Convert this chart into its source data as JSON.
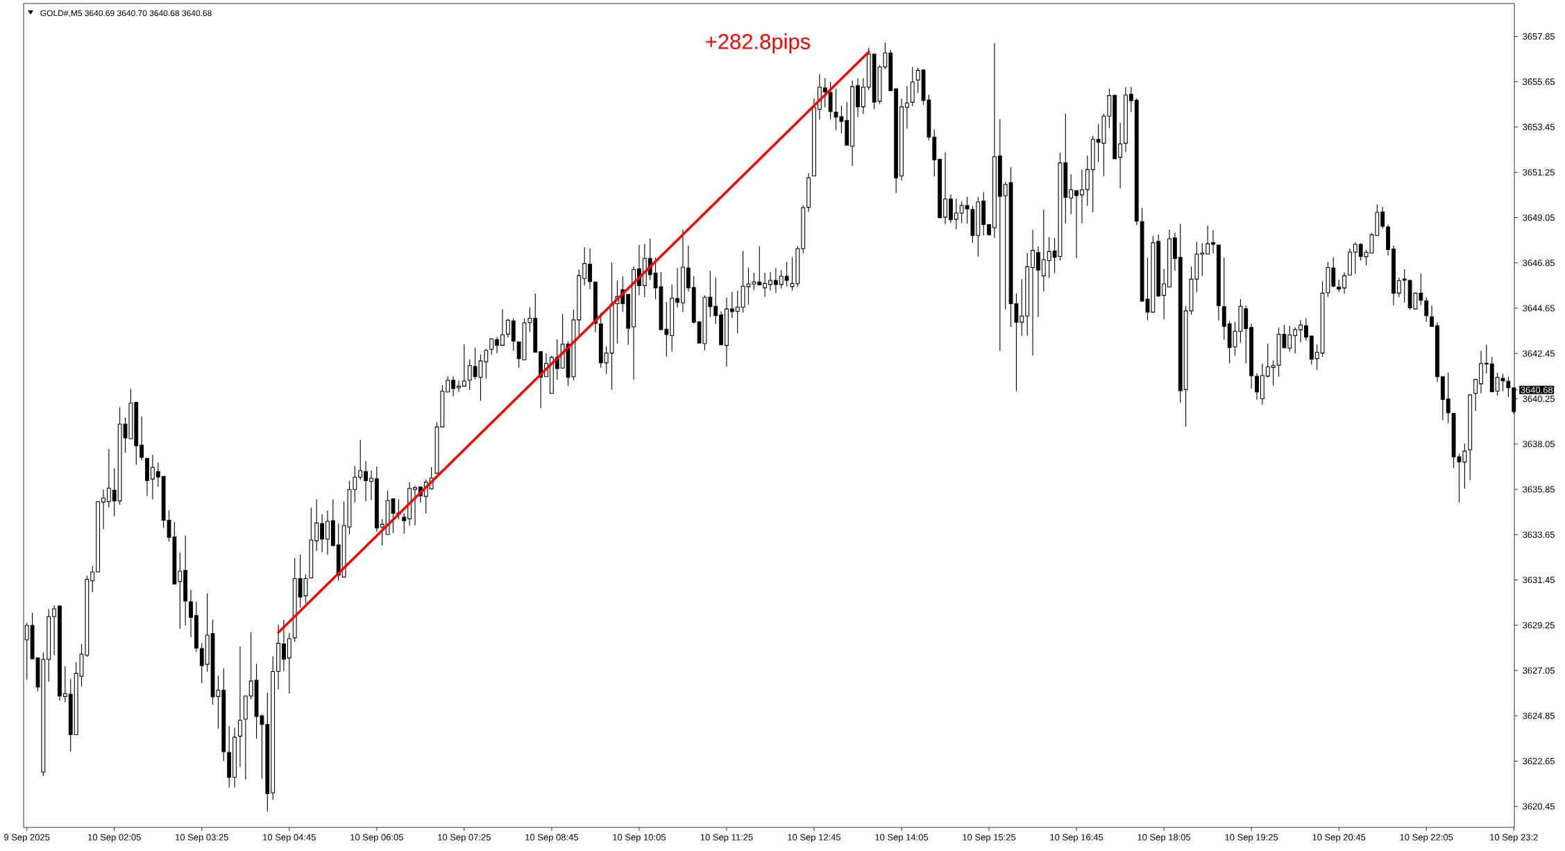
{
  "chart_data": {
    "type": "candlestick",
    "title": "GOLD#,M5  3640.69 3640.70 3640.68 3640.68",
    "color": "#000000",
    "categories": [
      "9 Sep 2025",
      null,
      null,
      null,
      null,
      null,
      null,
      null,
      null,
      null,
      null,
      null,
      null,
      null,
      null,
      null,
      "10 Sep 02:05",
      null,
      null,
      null,
      null,
      null,
      null,
      null,
      null,
      null,
      null,
      null,
      null,
      null,
      null,
      null,
      "10 Sep 03:25",
      null,
      null,
      null,
      null,
      null,
      null,
      null,
      null,
      null,
      null,
      null,
      null,
      null,
      null,
      null,
      "10 Sep 04:45",
      null,
      null,
      null,
      null,
      null,
      null,
      null,
      null,
      null,
      null,
      null,
      null,
      null,
      null,
      null,
      "10 Sep 06:05",
      null,
      null,
      null,
      null,
      null,
      null,
      null,
      null,
      null,
      null,
      null,
      null,
      null,
      null,
      null,
      "10 Sep 07:25",
      null,
      null,
      null,
      null,
      null,
      null,
      null,
      null,
      null,
      null,
      null,
      null,
      null,
      null,
      null,
      "10 Sep 08:45",
      null,
      null,
      null,
      null,
      null,
      null,
      null,
      null,
      null,
      null,
      null,
      null,
      null,
      null,
      null,
      "10 Sep 10:05",
      null,
      null,
      null,
      null,
      null,
      null,
      null,
      null,
      null,
      null,
      null,
      null,
      null,
      null,
      null,
      "10 Sep 11:25",
      null,
      null,
      null,
      null,
      null,
      null,
      null,
      null,
      null,
      null,
      null,
      null,
      null,
      null,
      null,
      "10 Sep 12:45",
      null,
      null,
      null,
      null,
      null,
      null,
      null,
      null,
      null,
      null,
      null,
      null,
      null,
      null,
      null,
      "10 Sep 14:05",
      null,
      null,
      null,
      null,
      null,
      null,
      null,
      null,
      null,
      null,
      null,
      null,
      null,
      null,
      null,
      "10 Sep 15:25",
      null,
      null,
      null,
      null,
      null,
      null,
      null,
      null,
      null,
      null,
      null,
      null,
      null,
      null,
      null,
      "10 Sep 16:45",
      null,
      null,
      null,
      null,
      null,
      null,
      null,
      null,
      null,
      null,
      null,
      null,
      null,
      null,
      null,
      "10 Sep 18:05",
      null,
      null,
      null,
      null,
      null,
      null,
      null,
      null,
      null,
      null,
      null,
      null,
      null,
      null,
      null,
      "10 Sep 19:25",
      null,
      null,
      null,
      null,
      null,
      null,
      null,
      null,
      null,
      null,
      null,
      null,
      null,
      null,
      null,
      "10 Sep 20:45",
      null,
      null,
      null,
      null,
      null,
      null,
      null,
      null,
      null,
      null,
      null,
      null,
      null,
      null,
      null,
      "10 Sep 22:05",
      null,
      null,
      null,
      null,
      null,
      null,
      null,
      null,
      null,
      null,
      null,
      null,
      null,
      null,
      null,
      "10 Sep 23:2"
    ],
    "ohlc": [
      [
        3628.54,
        3629.37,
        3626.6,
        3629.24
      ],
      [
        3629.24,
        3629.85,
        3627.62,
        3627.62
      ],
      [
        3627.66,
        3627.68,
        3626.05,
        3626.25
      ],
      [
        3622.12,
        3627.92,
        3621.93,
        3627.59
      ],
      [
        3627.59,
        3630.03,
        3626.5,
        3629.67
      ],
      [
        3629.67,
        3630.22,
        3627.79,
        3630.05
      ],
      [
        3630.18,
        3630.22,
        3625.59,
        3625.81
      ],
      [
        3625.79,
        3627.26,
        3625.51,
        3625.92
      ],
      [
        3625.9,
        3626.64,
        3623.11,
        3623.93
      ],
      [
        3623.93,
        3627.46,
        3623.93,
        3626.91
      ],
      [
        3626.77,
        3628.34,
        3626.27,
        3627.85
      ],
      [
        3627.79,
        3631.65,
        3627.72,
        3631.48
      ],
      [
        3631.41,
        3632.13,
        3630.86,
        3631.84
      ],
      [
        3631.84,
        3635.25,
        3631.84,
        3635.25
      ],
      [
        3635.23,
        3635.85,
        3633.91,
        3635.43
      ],
      [
        3635.25,
        3637.81,
        3634.97,
        3635.91
      ],
      [
        3635.81,
        3636.86,
        3634.54,
        3635.29
      ],
      [
        3635.29,
        3639.84,
        3635.1,
        3639.02
      ],
      [
        3639.02,
        3639.34,
        3637.63,
        3638.35
      ],
      [
        3638.31,
        3640.72,
        3638.31,
        3640.04
      ],
      [
        3640.08,
        3640.08,
        3637.05,
        3637.97
      ],
      [
        3638.0,
        3639.4,
        3637.27,
        3637.4
      ],
      [
        3637.36,
        3637.36,
        3635.53,
        3636.28
      ],
      [
        3636.35,
        3637.53,
        3635.36,
        3636.92
      ],
      [
        3636.72,
        3637.16,
        3635.98,
        3636.45
      ],
      [
        3636.48,
        3636.48,
        3633.98,
        3634.35
      ],
      [
        3634.35,
        3634.83,
        3633.32,
        3633.52
      ],
      [
        3633.54,
        3634.27,
        3631.25,
        3631.25
      ],
      [
        3631.37,
        3632.77,
        3629.08,
        3631.87
      ],
      [
        3631.91,
        3633.61,
        3629.24,
        3630.42
      ],
      [
        3630.39,
        3630.97,
        3628.67,
        3629.63
      ],
      [
        3629.72,
        3630.39,
        3627.96,
        3628.14
      ],
      [
        3628.12,
        3628.38,
        3626.43,
        3627.29
      ],
      [
        3627.35,
        3630.79,
        3627.0,
        3628.77
      ],
      [
        3628.84,
        3629.53,
        3625.39,
        3625.77
      ],
      [
        3625.79,
        3626.8,
        3624.23,
        3626.1
      ],
      [
        3626.1,
        3627.16,
        3622.65,
        3623.11
      ],
      [
        3623.07,
        3624.36,
        3621.37,
        3621.86
      ],
      [
        3621.86,
        3624.27,
        3621.37,
        3623.81
      ],
      [
        3623.86,
        3628.22,
        3622.36,
        3624.63
      ],
      [
        3624.69,
        3625.81,
        3621.76,
        3625.81
      ],
      [
        3625.81,
        3628.91,
        3625.65,
        3626.54
      ],
      [
        3626.58,
        3627.37,
        3623.74,
        3624.82
      ],
      [
        3624.85,
        3624.92,
        3621.8,
        3624.43
      ],
      [
        3624.43,
        3625.98,
        3620.21,
        3621.07
      ],
      [
        3621.11,
        3627.75,
        3620.77,
        3627.0
      ],
      [
        3627.01,
        3629.28,
        3626.14,
        3628.37
      ],
      [
        3628.35,
        3629.51,
        3627.01,
        3627.6
      ],
      [
        3627.66,
        3628.88,
        3625.94,
        3628.6
      ],
      [
        3628.64,
        3632.5,
        3628.44,
        3631.52
      ],
      [
        3631.52,
        3632.68,
        3630.11,
        3630.62
      ],
      [
        3630.68,
        3631.72,
        3630.31,
        3631.52
      ],
      [
        3631.55,
        3634.96,
        3631.52,
        3633.39
      ],
      [
        3633.35,
        3635.37,
        3632.86,
        3634.22
      ],
      [
        3634.19,
        3634.64,
        3632.79,
        3633.43
      ],
      [
        3633.43,
        3634.82,
        3632.66,
        3634.3
      ],
      [
        3634.33,
        3635.36,
        3633.08,
        3633.12
      ],
      [
        3633.15,
        3634.19,
        3631.41,
        3631.68
      ],
      [
        3631.59,
        3635.26,
        3631.59,
        3634.09
      ],
      [
        3634.02,
        3636.27,
        3633.66,
        3635.84
      ],
      [
        3635.84,
        3636.99,
        3635.2,
        3636.44
      ],
      [
        3636.44,
        3638.25,
        3636.31,
        3636.76
      ],
      [
        3636.72,
        3637.23,
        3635.26,
        3636.27
      ],
      [
        3636.24,
        3636.76,
        3635.33,
        3636.39
      ],
      [
        3636.36,
        3636.96,
        3633.79,
        3633.97
      ],
      [
        3634.02,
        3634.4,
        3633.12,
        3634.15
      ],
      [
        3633.66,
        3635.8,
        3633.66,
        3635.31
      ],
      [
        3635.39,
        3635.39,
        3633.73,
        3634.69
      ],
      [
        3634.69,
        3635.36,
        3634.4,
        3634.64
      ],
      [
        3634.5,
        3634.69,
        3633.7,
        3634.33
      ],
      [
        3634.42,
        3636.2,
        3634.09,
        3635.89
      ],
      [
        3635.84,
        3636.03,
        3634.1,
        3635.93
      ],
      [
        3635.97,
        3636.03,
        3635.2,
        3635.53
      ],
      [
        3635.51,
        3636.34,
        3634.69,
        3636.2
      ],
      [
        3635.87,
        3636.94,
        3635.87,
        3636.4
      ],
      [
        3636.63,
        3639.12,
        3636.63,
        3638.88
      ],
      [
        3638.88,
        3640.91,
        3638.88,
        3640.62
      ],
      [
        3640.58,
        3641.33,
        3640.58,
        3641.15
      ],
      [
        3641.15,
        3641.33,
        3640.38,
        3640.75
      ],
      [
        3640.78,
        3641.13,
        3640.58,
        3640.86
      ],
      [
        3640.86,
        3642.89,
        3640.86,
        3641.11
      ],
      [
        3641.15,
        3642.16,
        3640.68,
        3641.86
      ],
      [
        3641.82,
        3642.74,
        3641.19,
        3641.33
      ],
      [
        3641.29,
        3642.4,
        3640.15,
        3642.09
      ],
      [
        3642.05,
        3642.66,
        3641.22,
        3642.6
      ],
      [
        3642.65,
        3643.2,
        3642.4,
        3643.16
      ],
      [
        3643.12,
        3643.25,
        3642.46,
        3642.85
      ],
      [
        3642.85,
        3644.6,
        3642.82,
        3643.36
      ],
      [
        3643.39,
        3644.14,
        3643.23,
        3644.07
      ],
      [
        3644.03,
        3644.16,
        3642.58,
        3643.05
      ],
      [
        3643.01,
        3643.01,
        3641.75,
        3642.2
      ],
      [
        3642.14,
        3644.16,
        3642.14,
        3643.94
      ],
      [
        3643.95,
        3644.68,
        3643.5,
        3644.16
      ],
      [
        3644.16,
        3645.36,
        3642.51,
        3642.51
      ],
      [
        3642.54,
        3642.54,
        3639.8,
        3641.3
      ],
      [
        3641.32,
        3642.45,
        3641.32,
        3641.97
      ],
      [
        3640.51,
        3642.34,
        3640.51,
        3642.26
      ],
      [
        3642.26,
        3643.13,
        3641.18,
        3641.72
      ],
      [
        3641.74,
        3644.37,
        3641.74,
        3642.9
      ],
      [
        3642.9,
        3643.05,
        3640.87,
        3641.29
      ],
      [
        3641.32,
        3644.59,
        3641.15,
        3644.08
      ],
      [
        3644.08,
        3646.53,
        3643.3,
        3646.23
      ],
      [
        3646.09,
        3647.61,
        3645.75,
        3646.82
      ],
      [
        3646.79,
        3647.55,
        3645.57,
        3645.94
      ],
      [
        3645.92,
        3645.92,
        3643.49,
        3643.91
      ],
      [
        3643.89,
        3644.42,
        3641.75,
        3642.0
      ],
      [
        3642.0,
        3642.79,
        3641.46,
        3642.47
      ],
      [
        3642.47,
        3646.87,
        3640.7,
        3644.85
      ],
      [
        3644.87,
        3646.0,
        3642.93,
        3645.21
      ],
      [
        3645.55,
        3646.2,
        3644.48,
        3644.87
      ],
      [
        3645.32,
        3645.32,
        3642.87,
        3643.67
      ],
      [
        3643.75,
        3646.68,
        3641.18,
        3646.53
      ],
      [
        3646.56,
        3647.73,
        3645.27,
        3645.75
      ],
      [
        3645.75,
        3647.78,
        3645.19,
        3647.07
      ],
      [
        3647.07,
        3648.03,
        3646.02,
        3646.28
      ],
      [
        3646.36,
        3647.1,
        3645.08,
        3645.64
      ],
      [
        3645.69,
        3646.4,
        3643.61,
        3643.61
      ],
      [
        3643.63,
        3644.95,
        3642.3,
        3643.37
      ],
      [
        3643.32,
        3645.8,
        3642.54,
        3645.13
      ],
      [
        3645.12,
        3646.6,
        3644.68,
        3644.93
      ],
      [
        3644.91,
        3648.46,
        3644.46,
        3646.64
      ],
      [
        3646.6,
        3647.69,
        3645.47,
        3645.64
      ],
      [
        3645.66,
        3646.2,
        3643.91,
        3643.97
      ],
      [
        3643.99,
        3643.99,
        3642.93,
        3642.96
      ],
      [
        3642.93,
        3645.27,
        3642.6,
        3645.18
      ],
      [
        3645.19,
        3646.45,
        3644.22,
        3644.73
      ],
      [
        3644.74,
        3646.15,
        3643.88,
        3644.29
      ],
      [
        3644.33,
        3644.5,
        3642.87,
        3642.87
      ],
      [
        3642.84,
        3645.16,
        3641.81,
        3644.61
      ],
      [
        3644.61,
        3645.44,
        3644.18,
        3644.48
      ],
      [
        3644.5,
        3645.49,
        3643.43,
        3644.7
      ],
      [
        3644.7,
        3647.43,
        3644.44,
        3645.72
      ],
      [
        3645.69,
        3646.62,
        3644.82,
        3645.83
      ],
      [
        3645.82,
        3646.37,
        3645.53,
        3645.92
      ],
      [
        3645.92,
        3647.66,
        3645.78,
        3645.78
      ],
      [
        3645.64,
        3646.37,
        3645.2,
        3645.85
      ],
      [
        3645.8,
        3646.4,
        3645.5,
        3646.0
      ],
      [
        3646.0,
        3646.6,
        3645.4,
        3645.8
      ],
      [
        3645.8,
        3646.5,
        3645.6,
        3646.2
      ],
      [
        3646.2,
        3646.9,
        3645.7,
        3646.0
      ],
      [
        3645.7,
        3647.13,
        3645.5,
        3645.85
      ],
      [
        3645.84,
        3647.66,
        3645.7,
        3647.54
      ],
      [
        3647.54,
        3649.66,
        3647.3,
        3649.53
      ],
      [
        3649.55,
        3651.21,
        3649.33,
        3650.99
      ],
      [
        3651.07,
        3654.85,
        3651.07,
        3654.4
      ],
      [
        3654.31,
        3656.03,
        3653.8,
        3655.39
      ],
      [
        3655.35,
        3655.83,
        3654.4,
        3655.15
      ],
      [
        3655.13,
        3655.64,
        3653.83,
        3654.2
      ],
      [
        3654.17,
        3655.3,
        3653.29,
        3653.93
      ],
      [
        3653.95,
        3654.49,
        3653.14,
        3653.72
      ],
      [
        3653.77,
        3654.66,
        3652.57,
        3652.57
      ],
      [
        3652.52,
        3655.72,
        3651.56,
        3655.41
      ],
      [
        3655.46,
        3655.81,
        3653.93,
        3654.43
      ],
      [
        3654.43,
        3655.83,
        3654.09,
        3655.39
      ],
      [
        3655.39,
        3657.3,
        3655.24,
        3656.99
      ],
      [
        3656.99,
        3656.99,
        3654.32,
        3654.66
      ],
      [
        3654.7,
        3656.45,
        3654.57,
        3656.37
      ],
      [
        3656.37,
        3657.55,
        3656.26,
        3657.05
      ],
      [
        3657.05,
        3657.19,
        3655.21,
        3655.21
      ],
      [
        3655.3,
        3655.33,
        3650.25,
        3650.98
      ],
      [
        3651.07,
        3654.82,
        3650.85,
        3654.43
      ],
      [
        3654.4,
        3655.44,
        3653.38,
        3654.62
      ],
      [
        3654.65,
        3656.37,
        3654.46,
        3655.64
      ],
      [
        3655.73,
        3656.32,
        3655.1,
        3656.2
      ],
      [
        3656.22,
        3656.26,
        3654.53,
        3654.74
      ],
      [
        3654.76,
        3655.02,
        3652.8,
        3652.96
      ],
      [
        3652.96,
        3653.33,
        3651.05,
        3651.86
      ],
      [
        3651.88,
        3651.92,
        3649.04,
        3649.04
      ],
      [
        3649.07,
        3652.22,
        3648.74,
        3649.95
      ],
      [
        3649.95,
        3650.17,
        3648.79,
        3648.95
      ],
      [
        3648.97,
        3649.97,
        3648.48,
        3649.27
      ],
      [
        3649.27,
        3649.83,
        3648.79,
        3649.64
      ],
      [
        3649.64,
        3650.06,
        3648.76,
        3649.47
      ],
      [
        3649.44,
        3649.61,
        3647.81,
        3648.18
      ],
      [
        3648.18,
        3650.06,
        3647.16,
        3649.81
      ],
      [
        3649.86,
        3650.28,
        3648.18,
        3648.71
      ],
      [
        3648.71,
        3648.71,
        3648.18,
        3648.22
      ],
      [
        3648.56,
        3657.53,
        3648.06,
        3652.01
      ],
      [
        3652.05,
        3653.84,
        3642.58,
        3650.08
      ],
      [
        3650.11,
        3650.79,
        3644.6,
        3650.66
      ],
      [
        3650.75,
        3651.5,
        3643.74,
        3644.87
      ],
      [
        3644.87,
        3645.37,
        3640.62,
        3643.97
      ],
      [
        3643.97,
        3646.06,
        3643.31,
        3644.27
      ],
      [
        3644.27,
        3647.33,
        3643.31,
        3646.66
      ],
      [
        3646.62,
        3648.47,
        3642.34,
        3647.46
      ],
      [
        3647.35,
        3647.65,
        3644.22,
        3646.5
      ],
      [
        3646.22,
        3649.44,
        3645.46,
        3647.0
      ],
      [
        3646.96,
        3648.1,
        3646.12,
        3647.4
      ],
      [
        3647.43,
        3648.06,
        3646.35,
        3647.12
      ],
      [
        3647.16,
        3652.21,
        3646.97,
        3651.71
      ],
      [
        3651.71,
        3654.09,
        3648.77,
        3650.04
      ],
      [
        3650.0,
        3651.16,
        3649.21,
        3650.4
      ],
      [
        3650.35,
        3650.4,
        3647.08,
        3650.12
      ],
      [
        3650.15,
        3651.38,
        3648.77,
        3650.4
      ],
      [
        3650.41,
        3652.06,
        3649.62,
        3651.38
      ],
      [
        3651.38,
        3653.03,
        3649.31,
        3652.85
      ],
      [
        3652.85,
        3653.59,
        3651.75,
        3652.71
      ],
      [
        3652.66,
        3654.1,
        3651.06,
        3653.98
      ],
      [
        3653.98,
        3655.32,
        3653.4,
        3654.98
      ],
      [
        3654.98,
        3655.04,
        3651.88,
        3651.91
      ],
      [
        3651.98,
        3653.66,
        3650.47,
        3652.63
      ],
      [
        3652.66,
        3655.4,
        3652.23,
        3655.0
      ],
      [
        3655.04,
        3655.4,
        3654.17,
        3654.73
      ],
      [
        3654.75,
        3654.84,
        3648.69,
        3648.87
      ],
      [
        3648.85,
        3649.52,
        3644.99,
        3644.99
      ],
      [
        3645.09,
        3647.1,
        3644.06,
        3644.46
      ],
      [
        3644.46,
        3648.16,
        3644.43,
        3647.83
      ],
      [
        3647.9,
        3648.22,
        3645.18,
        3645.24
      ],
      [
        3645.27,
        3646.56,
        3644.12,
        3645.83
      ],
      [
        3645.68,
        3648.46,
        3645.68,
        3648.02
      ],
      [
        3648.06,
        3648.33,
        3646.46,
        3647.06
      ],
      [
        3647.12,
        3648.75,
        3640.05,
        3640.64
      ],
      [
        3640.7,
        3644.74,
        3638.89,
        3644.52
      ],
      [
        3644.52,
        3646.68,
        3644.33,
        3646.06
      ],
      [
        3646.06,
        3647.87,
        3645.43,
        3647.28
      ],
      [
        3647.28,
        3647.81,
        3646.22,
        3647.33
      ],
      [
        3647.28,
        3648.66,
        3647.28,
        3647.78
      ],
      [
        3647.83,
        3648.43,
        3647.31,
        3647.75
      ],
      [
        3647.72,
        3647.72,
        3644.06,
        3644.77
      ],
      [
        3644.72,
        3647.1,
        3643.12,
        3643.77
      ],
      [
        3643.89,
        3644.03,
        3641.97,
        3642.74
      ],
      [
        3642.77,
        3643.99,
        3642.34,
        3643.53
      ],
      [
        3643.53,
        3645.09,
        3642.97,
        3644.74
      ],
      [
        3644.62,
        3644.77,
        3641.97,
        3643.66
      ],
      [
        3643.71,
        3643.89,
        3640.74,
        3641.37
      ],
      [
        3641.34,
        3641.49,
        3640.21,
        3640.58
      ],
      [
        3640.25,
        3641.96,
        3639.97,
        3641.38
      ],
      [
        3641.35,
        3642.92,
        3641.27,
        3641.8
      ],
      [
        3641.77,
        3642.11,
        3640.89,
        3641.86
      ],
      [
        3641.88,
        3643.72,
        3641.32,
        3643.38
      ],
      [
        3643.38,
        3643.84,
        3642.7,
        3642.73
      ],
      [
        3642.71,
        3643.8,
        3642.54,
        3643.35
      ],
      [
        3643.32,
        3643.72,
        3642.45,
        3643.61
      ],
      [
        3643.6,
        3644.08,
        3642.98,
        3643.83
      ],
      [
        3643.8,
        3644.17,
        3643.07,
        3643.24
      ],
      [
        3643.3,
        3643.3,
        3641.91,
        3642.17
      ],
      [
        3642.2,
        3642.88,
        3641.66,
        3642.51
      ],
      [
        3642.47,
        3645.97,
        3642.28,
        3645.38
      ],
      [
        3645.4,
        3646.9,
        3645.21,
        3646.62
      ],
      [
        3646.6,
        3647.13,
        3645.66,
        3645.72
      ],
      [
        3645.68,
        3646.02,
        3645.44,
        3645.58
      ],
      [
        3645.63,
        3646.39,
        3645.35,
        3646.23
      ],
      [
        3646.26,
        3647.55,
        3646.26,
        3647.37
      ],
      [
        3647.37,
        3647.86,
        3646.31,
        3647.75
      ],
      [
        3647.75,
        3647.8,
        3646.96,
        3647.16
      ],
      [
        3647.15,
        3647.47,
        3646.73,
        3647.37
      ],
      [
        3647.33,
        3648.31,
        3647.33,
        3648.22
      ],
      [
        3648.18,
        3649.69,
        3648.18,
        3649.3
      ],
      [
        3649.33,
        3649.57,
        3648.51,
        3648.63
      ],
      [
        3648.59,
        3648.7,
        3647.21,
        3647.5
      ],
      [
        3647.52,
        3647.69,
        3644.79,
        3645.38
      ],
      [
        3645.38,
        3646.13,
        3645.18,
        3645.98
      ],
      [
        3646.06,
        3646.54,
        3644.93,
        3646.01
      ],
      [
        3646.0,
        3646.03,
        3644.57,
        3644.67
      ],
      [
        3644.61,
        3645.4,
        3644.59,
        3645.38
      ],
      [
        3645.38,
        3646.34,
        3644.79,
        3645.04
      ],
      [
        3645.01,
        3645.18,
        3643.99,
        3644.29
      ],
      [
        3644.23,
        3644.78,
        3643.75,
        3643.77
      ],
      [
        3643.8,
        3643.97,
        3641.07,
        3641.32
      ],
      [
        3641.32,
        3641.36,
        3639.21,
        3640.22
      ],
      [
        3640.24,
        3641.51,
        3639.07,
        3639.57
      ],
      [
        3639.54,
        3639.54,
        3636.89,
        3637.43
      ],
      [
        3637.43,
        3637.58,
        3635.21,
        3637.18
      ],
      [
        3637.17,
        3638.07,
        3635.89,
        3637.71
      ],
      [
        3637.77,
        3640.44,
        3636.3,
        3640.44
      ],
      [
        3640.51,
        3641.19,
        3639.65,
        3641.19
      ],
      [
        3640.98,
        3642.58,
        3640.51,
        3641.96
      ],
      [
        3641.94,
        3642.88,
        3641.49,
        3641.98
      ],
      [
        3641.94,
        3642.28,
        3640.57,
        3640.59
      ],
      [
        3640.62,
        3641.51,
        3640.4,
        3641.29
      ],
      [
        3641.24,
        3641.47,
        3640.62,
        3641.12
      ],
      [
        3641.1,
        3641.32,
        3640.33,
        3640.78
      ],
      [
        3640.78,
        3640.78,
        3639.52,
        3639.63
      ]
    ],
    "series": [
      {
        "type": "line",
        "color": "#ff0000",
        "values": [
          null,
          null,
          null,
          null,
          null,
          null,
          null,
          null,
          null,
          null,
          null,
          null,
          null,
          null,
          null,
          null,
          null,
          null,
          null,
          null,
          null,
          null,
          null,
          null,
          null,
          null,
          null,
          null,
          null,
          null,
          null,
          null,
          null,
          null,
          null,
          null,
          null,
          null,
          null,
          null,
          null,
          null,
          null,
          null,
          null,
          null,
          3628.9,
          null,
          null,
          null,
          null,
          null,
          null,
          null,
          null,
          null,
          null,
          null,
          null,
          null,
          null,
          null,
          null,
          null,
          null,
          null,
          null,
          null,
          null,
          null,
          null,
          null,
          null,
          null,
          null,
          null,
          null,
          null,
          null,
          null,
          null,
          null,
          null,
          null,
          null,
          null,
          null,
          null,
          null,
          null,
          null,
          null,
          null,
          null,
          null,
          null,
          null,
          null,
          null,
          null,
          null,
          null,
          null,
          null,
          null,
          null,
          null,
          null,
          null,
          null,
          null,
          null,
          null,
          null,
          null,
          null,
          null,
          null,
          null,
          null,
          null,
          null,
          null,
          null,
          null,
          null,
          null,
          null,
          null,
          null,
          null,
          null,
          null,
          null,
          null,
          null,
          null,
          null,
          null,
          null,
          null,
          null,
          null,
          null,
          null,
          null,
          null,
          null,
          null,
          null,
          null,
          null,
          null,
          null,
          3657.1,
          null,
          null,
          null,
          null,
          null,
          null,
          null,
          null,
          null,
          null,
          null,
          null,
          null,
          null,
          null,
          null,
          null,
          null,
          null,
          null,
          null,
          null,
          null,
          null,
          null,
          null,
          null,
          null,
          null,
          null,
          null,
          null,
          null,
          null,
          null,
          null,
          null,
          null,
          null,
          null,
          null,
          null,
          null,
          null,
          null,
          null,
          null,
          null,
          null,
          null,
          null,
          null,
          null,
          null,
          null,
          null,
          null,
          null,
          null,
          null,
          null,
          null,
          null,
          null,
          null,
          null,
          null,
          null,
          null,
          null,
          null,
          null,
          null,
          null,
          null,
          null,
          null,
          null,
          null,
          null,
          null,
          null,
          null,
          null,
          null,
          null,
          null,
          null,
          null,
          null,
          null,
          null,
          null,
          null,
          null,
          null,
          null,
          null,
          null,
          null,
          null,
          null,
          null,
          null,
          null,
          null,
          null,
          null,
          null,
          null,
          null,
          null,
          null,
          null,
          null,
          null,
          null,
          null
        ]
      }
    ],
    "annotations": [
      "+282.8pips"
    ],
    "ylim": [
      3619.43,
      3659.45
    ],
    "yticks": [
      3620.45,
      3622.65,
      3624.85,
      3627.05,
      3629.25,
      3631.45,
      3633.65,
      3635.85,
      3638.05,
      3640.25,
      3642.45,
      3644.65,
      3646.85,
      3649.05,
      3651.25,
      3653.45,
      3655.65,
      3657.85,
      {
        "value": 3640.68,
        "label": "3640.68"
      }
    ]
  }
}
